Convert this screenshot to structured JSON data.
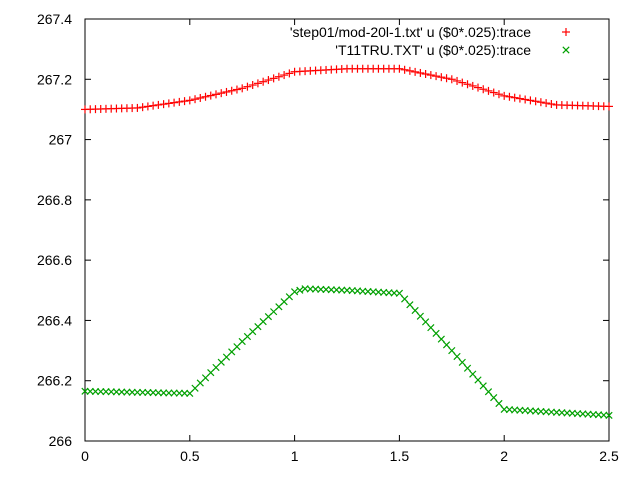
{
  "chart_data": {
    "type": "scatter",
    "title": "",
    "xlabel": "",
    "ylabel": "",
    "xlim": [
      0,
      2.5
    ],
    "ylim": [
      266,
      267.4
    ],
    "x_ticks": [
      "0",
      "0.5",
      "1",
      "1.5",
      "2",
      "2.5"
    ],
    "y_ticks": [
      "266",
      "266.2",
      "266.4",
      "266.6",
      "266.8",
      "267",
      "267.2",
      "267.4"
    ],
    "grid": false,
    "legend_position": "top-right",
    "series": [
      {
        "name": "'step01/mod-20l-1.txt' u ($0*.025):trace",
        "marker": "plus",
        "color": "#ff0000",
        "x_start": 0,
        "x_step": 0.025,
        "count": 101,
        "keyframes": [
          [
            0,
            267.1
          ],
          [
            0.25,
            267.105
          ],
          [
            0.5,
            267.13
          ],
          [
            0.75,
            267.17
          ],
          [
            1.0,
            267.225
          ],
          [
            1.25,
            267.235
          ],
          [
            1.5,
            267.235
          ],
          [
            1.75,
            267.2
          ],
          [
            2.0,
            267.145
          ],
          [
            2.25,
            267.115
          ],
          [
            2.5,
            267.11
          ]
        ]
      },
      {
        "name": "'T11TRU.TXT' u ($0*.025):trace",
        "marker": "cross",
        "color": "#00a000",
        "x_start": 0,
        "x_step": 0.025,
        "count": 101,
        "keyframes": [
          [
            0,
            266.165
          ],
          [
            0.5,
            266.158
          ],
          [
            0.75,
            266.33
          ],
          [
            1.0,
            266.495
          ],
          [
            1.05,
            266.505
          ],
          [
            1.25,
            266.5
          ],
          [
            1.5,
            266.49
          ],
          [
            1.75,
            266.3
          ],
          [
            2.0,
            266.105
          ],
          [
            2.25,
            266.095
          ],
          [
            2.5,
            266.085
          ]
        ]
      }
    ]
  }
}
